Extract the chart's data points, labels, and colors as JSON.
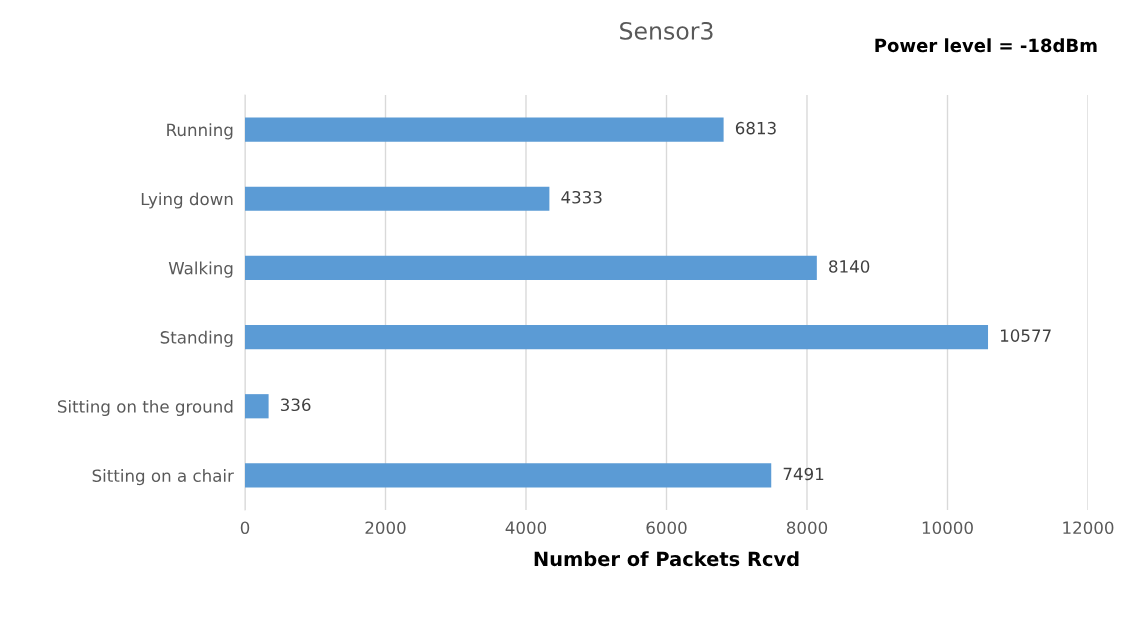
{
  "chart_data": {
    "type": "bar",
    "orientation": "horizontal",
    "title": "Sensor3",
    "xlabel": "Number of Packets Rcvd",
    "annotations": [
      "Power level = -18dBm"
    ],
    "categories": [
      "Running",
      "Lying down",
      "Walking",
      "Standing",
      "Sitting on the ground",
      "Sitting on a chair"
    ],
    "values": [
      6813,
      4333,
      8140,
      10577,
      336,
      7491
    ],
    "color": "#5b9bd5",
    "xlim": [
      0,
      12000
    ],
    "xticks": [
      0,
      2000,
      4000,
      6000,
      8000,
      10000,
      12000
    ],
    "grid": "x",
    "data_labels": true
  }
}
